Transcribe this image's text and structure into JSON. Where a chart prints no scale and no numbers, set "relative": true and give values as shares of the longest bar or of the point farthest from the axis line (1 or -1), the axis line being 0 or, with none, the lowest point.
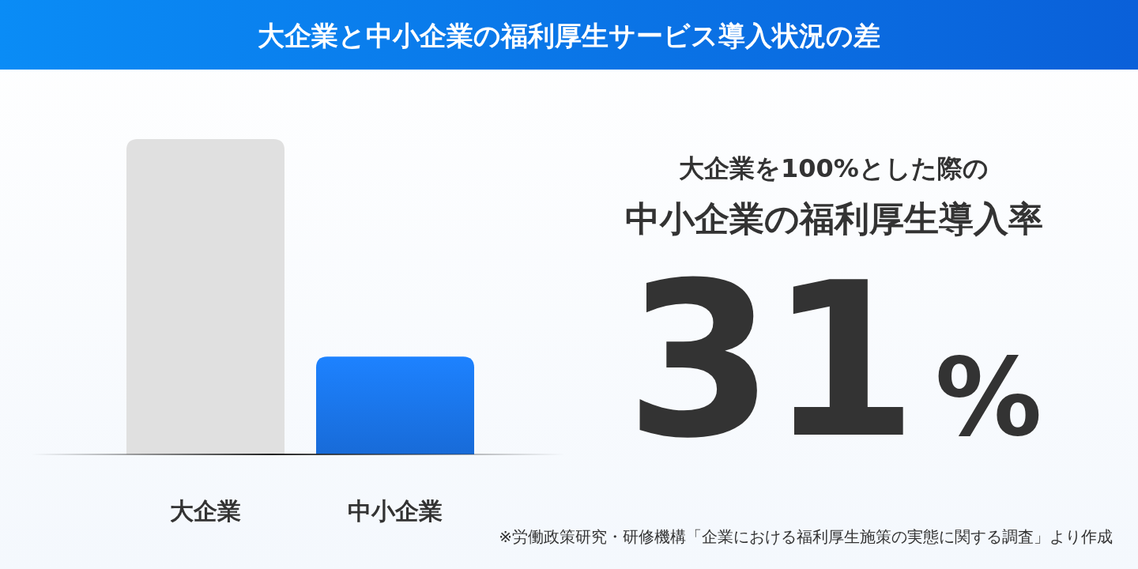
{
  "chart_data": {
    "type": "bar",
    "title": "大企業と中小企業の福利厚生サービス導入状況の差",
    "categories": [
      "大企業",
      "中小企業"
    ],
    "values": [
      1,
      0.31
    ],
    "colors": [
      "#e0e0e0",
      "#1a73e8"
    ],
    "relative": true,
    "annotations": [
      "大企業を100%とした際の",
      "中小企業の福利厚生導入率",
      "31%",
      "※労働政策研究・研修機構「企業における福利厚生施策の実態に関する調査」より作成"
    ]
  }
}
